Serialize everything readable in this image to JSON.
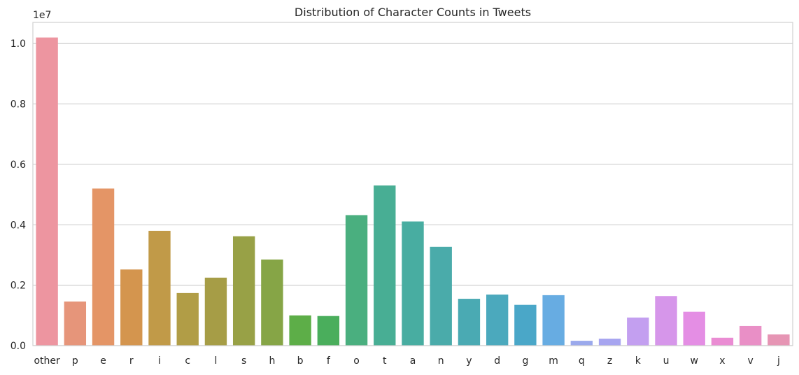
{
  "chart_data": {
    "type": "bar",
    "title": "Distribution of Character Counts in Tweets",
    "xlabel": "",
    "ylabel": "",
    "scale_offset_label": "1e7",
    "categories": [
      "other",
      "p",
      "e",
      "r",
      "i",
      "c",
      "l",
      "s",
      "h",
      "b",
      "f",
      "o",
      "t",
      "a",
      "n",
      "y",
      "d",
      "g",
      "m",
      "q",
      "z",
      "k",
      "u",
      "w",
      "x",
      "v",
      "j"
    ],
    "values": [
      10200000,
      1460000,
      5200000,
      2520000,
      3800000,
      1740000,
      2250000,
      3620000,
      2850000,
      1000000,
      980000,
      4320000,
      5300000,
      4110000,
      3270000,
      1550000,
      1690000,
      1350000,
      1670000,
      160000,
      230000,
      930000,
      1640000,
      1120000,
      260000,
      650000,
      370000
    ],
    "ylim": [
      0,
      10700000
    ],
    "yticks": [
      0,
      2000000,
      4000000,
      6000000,
      8000000,
      10000000
    ],
    "ytick_labels": [
      "0.0",
      "0.2",
      "0.4",
      "0.6",
      "0.8",
      "1.0"
    ],
    "grid": "horizontal",
    "legend": "none",
    "colors": [
      "#ed95a0",
      "#e6957a",
      "#e49566",
      "#d4954e",
      "#c19a48",
      "#b19d46",
      "#a69d46",
      "#98a146",
      "#86a546",
      "#5dae48",
      "#4aae5c",
      "#4aaf7f",
      "#48ae94",
      "#48ada1",
      "#4aabaa",
      "#4aaab3",
      "#4ba9bd",
      "#4aa7c8",
      "#67ace2",
      "#9ba9ec",
      "#a7a5f0",
      "#c39ff0",
      "#d696ea",
      "#e48ee4",
      "#ea8cd3",
      "#e98fc6",
      "#e695b4"
    ]
  }
}
